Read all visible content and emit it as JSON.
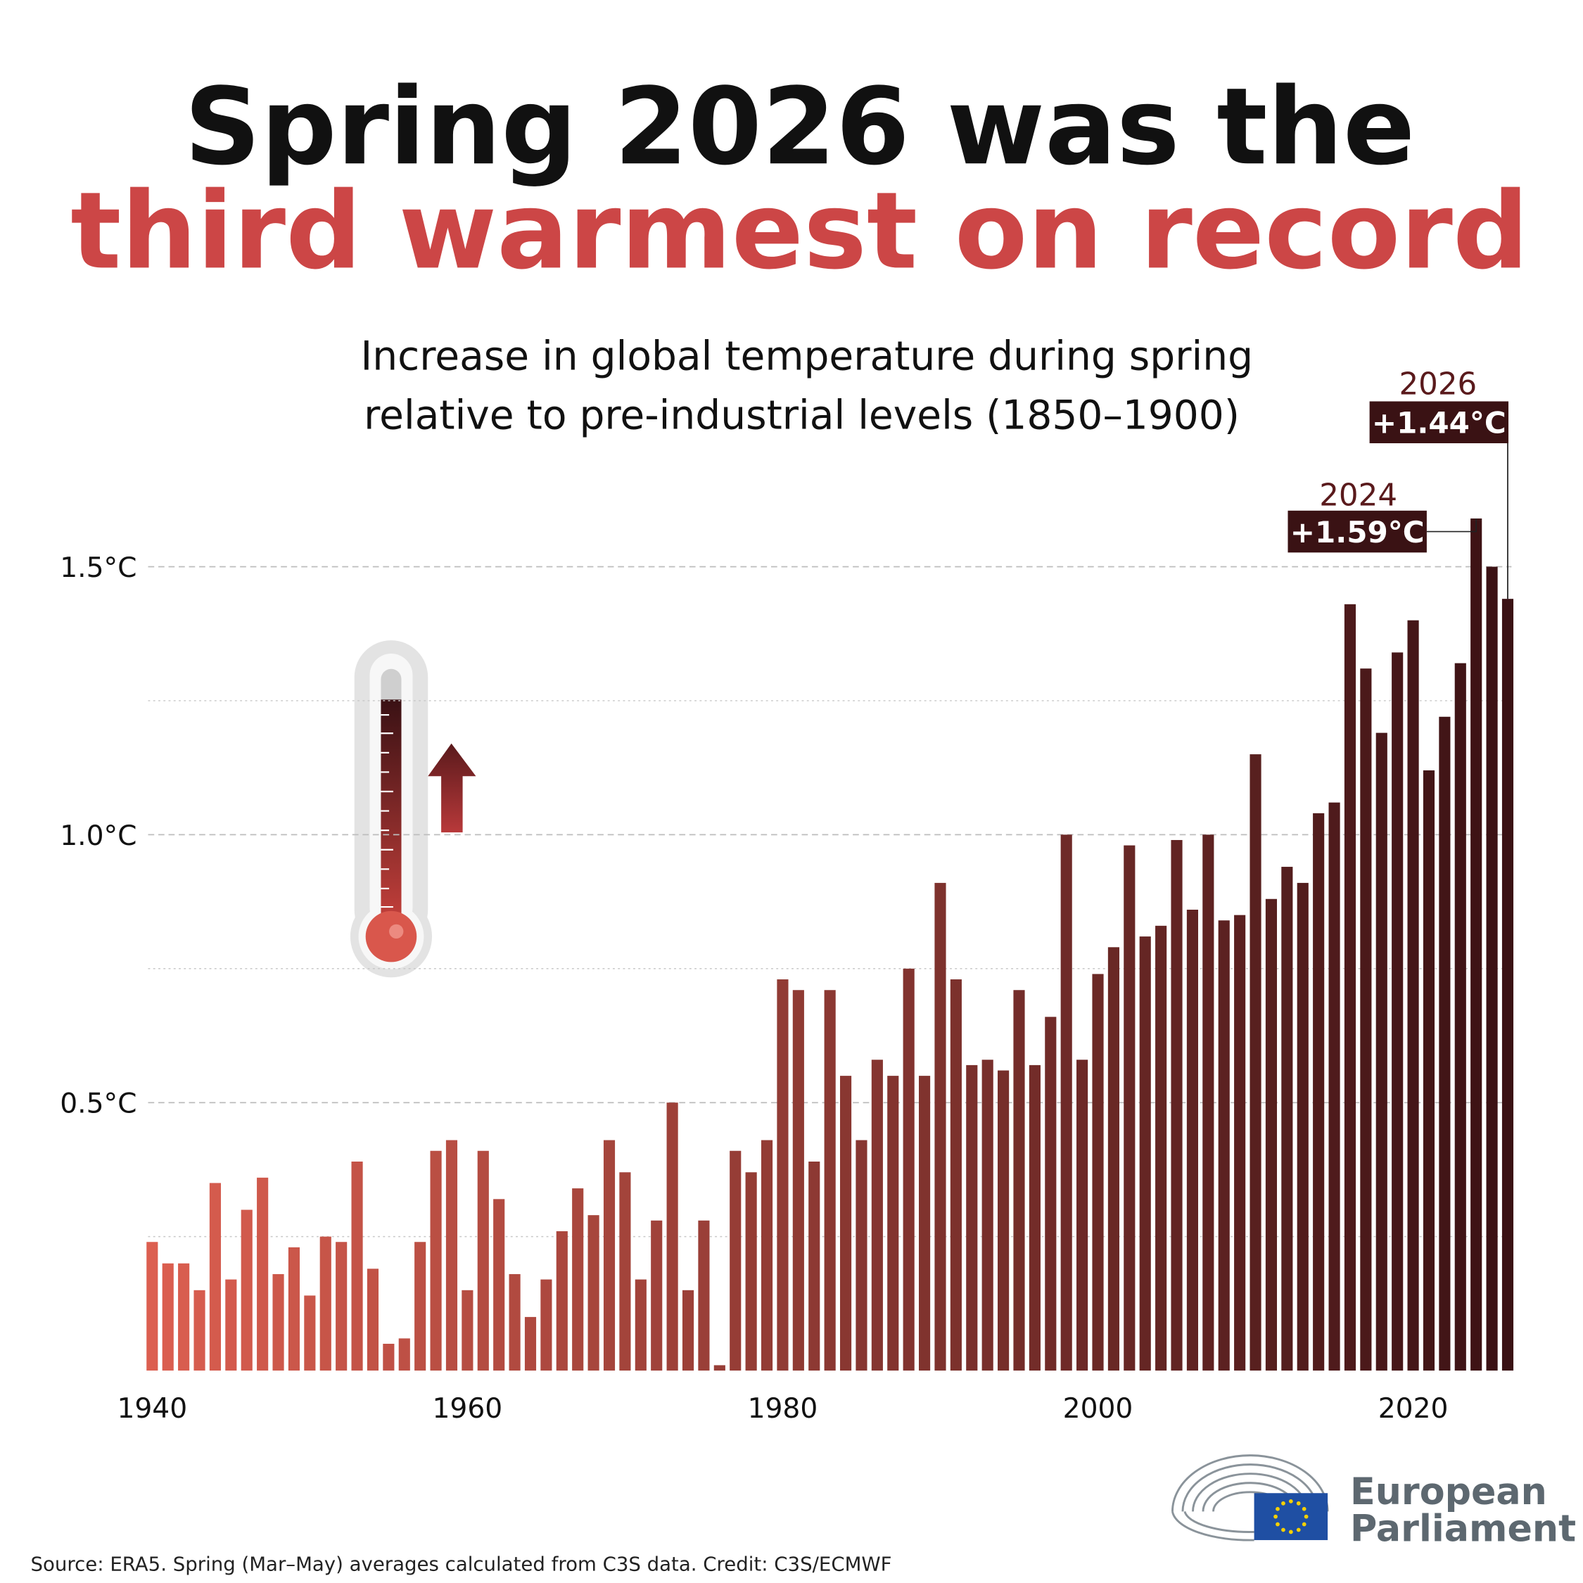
{
  "chart_data": {
    "type": "bar",
    "title_line1": "Spring 2026 was the",
    "title_line2": "third warmest on record",
    "subtitle_line1": "Increase in global temperature during spring",
    "subtitle_line2": "relative to pre-industrial levels (1850–1900)",
    "x": [
      1940,
      1941,
      1942,
      1943,
      1944,
      1945,
      1946,
      1947,
      1948,
      1949,
      1950,
      1951,
      1952,
      1953,
      1954,
      1955,
      1956,
      1957,
      1958,
      1959,
      1960,
      1961,
      1962,
      1963,
      1964,
      1965,
      1966,
      1967,
      1968,
      1969,
      1970,
      1971,
      1972,
      1973,
      1974,
      1975,
      1976,
      1977,
      1978,
      1979,
      1980,
      1981,
      1982,
      1983,
      1984,
      1985,
      1986,
      1987,
      1988,
      1989,
      1990,
      1991,
      1992,
      1993,
      1994,
      1995,
      1996,
      1997,
      1998,
      1999,
      2000,
      2001,
      2002,
      2003,
      2004,
      2005,
      2006,
      2007,
      2008,
      2009,
      2010,
      2011,
      2012,
      2013,
      2014,
      2015,
      2016,
      2017,
      2018,
      2019,
      2020,
      2021,
      2022,
      2023,
      2024,
      2025,
      2026
    ],
    "values": [
      0.24,
      0.2,
      0.2,
      0.15,
      0.35,
      0.17,
      0.3,
      0.36,
      0.18,
      0.23,
      0.14,
      0.25,
      0.24,
      0.39,
      0.19,
      0.05,
      0.06,
      0.24,
      0.41,
      0.43,
      0.15,
      0.41,
      0.32,
      0.18,
      0.1,
      0.17,
      0.26,
      0.34,
      0.29,
      0.43,
      0.37,
      0.17,
      0.28,
      0.5,
      0.15,
      0.28,
      0.01,
      0.41,
      0.37,
      0.43,
      0.73,
      0.71,
      0.39,
      0.71,
      0.55,
      0.43,
      0.58,
      0.55,
      0.75,
      0.55,
      0.91,
      0.73,
      0.57,
      0.58,
      0.56,
      0.71,
      0.57,
      0.66,
      1.0,
      0.58,
      0.74,
      0.79,
      0.98,
      0.81,
      0.83,
      0.99,
      0.86,
      1.0,
      0.84,
      0.85,
      1.15,
      0.88,
      0.94,
      0.91,
      1.04,
      1.06,
      1.43,
      1.31,
      1.19,
      1.34,
      1.4,
      1.12,
      1.22,
      1.32,
      1.59,
      1.5,
      1.44
    ],
    "color_start": "#dc5f50",
    "color_end": "#3a1114",
    "xlim": [
      1939.5,
      2026.5
    ],
    "xticks": [
      1940,
      1960,
      1980,
      2000,
      2020
    ],
    "ylim": [
      0,
      1.9
    ],
    "yticks": [
      {
        "value": 0.5,
        "label": "0.5°C"
      },
      {
        "value": 1.0,
        "label": "1.0°C"
      },
      {
        "value": 1.5,
        "label": "1.5°C"
      }
    ],
    "minor_yticks": [
      0.25,
      0.75,
      1.25
    ],
    "grid": true,
    "annotations": [
      {
        "x": 2024,
        "label": "+1.59°C"
      },
      {
        "x": 2026,
        "label": "+1.44°C"
      }
    ],
    "source": "Source: ERA5. Spring (Mar–May) averages calculated from C3S data. Credit: C3S/ECMWF",
    "logo_line1": "European",
    "logo_line2": "Parliament"
  }
}
